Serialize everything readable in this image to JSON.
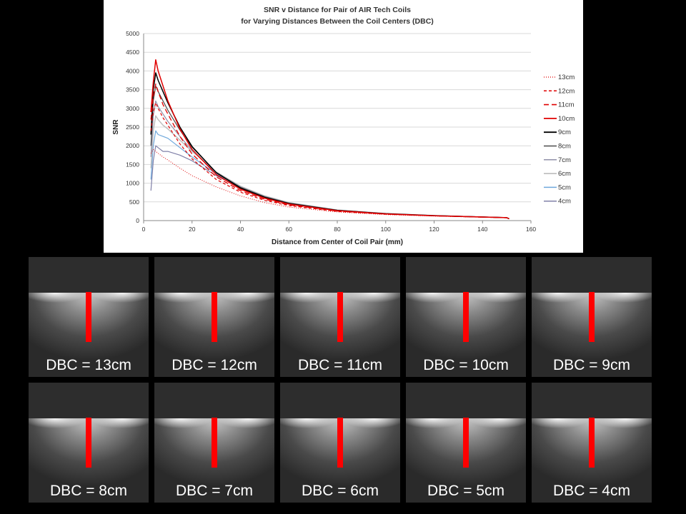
{
  "chart_data": {
    "type": "line",
    "title": "SNR v Distance for Pair of AIR Tech Coils",
    "subtitle": "for Varying Distances Between the Coil Centers (DBC)",
    "xlabel": "Distance from Center of Coil Pair (mm)",
    "ylabel": "SNR",
    "xlim": [
      0,
      160
    ],
    "ylim": [
      0,
      5000
    ],
    "xticks": [
      0,
      20,
      40,
      60,
      80,
      100,
      120,
      140,
      160
    ],
    "yticks": [
      0,
      500,
      1000,
      1500,
      2000,
      2500,
      3000,
      3500,
      4000,
      4500,
      5000
    ],
    "grid": "horizontal",
    "legend_position": "right",
    "x": [
      3,
      4,
      5,
      6,
      8,
      10,
      15,
      20,
      30,
      40,
      50,
      60,
      80,
      100,
      120,
      140,
      150,
      151
    ],
    "series": [
      {
        "name": "13cm",
        "color": "#e00000",
        "dash": "1,2",
        "width": 1,
        "values": [
          1800,
          1900,
          1850,
          1800,
          1700,
          1620,
          1400,
          1200,
          900,
          660,
          480,
          360,
          230,
          160,
          120,
          90,
          75,
          50
        ]
      },
      {
        "name": "12cm",
        "color": "#e00000",
        "dash": "4,3",
        "width": 1.2,
        "values": [
          2400,
          2900,
          3150,
          3000,
          2750,
          2550,
          2050,
          1650,
          1100,
          760,
          540,
          400,
          245,
          170,
          125,
          92,
          76,
          50
        ]
      },
      {
        "name": "11cm",
        "color": "#e00000",
        "dash": "7,4",
        "width": 1.3,
        "values": [
          2700,
          3300,
          3650,
          3450,
          3100,
          2850,
          2250,
          1780,
          1170,
          800,
          570,
          420,
          255,
          175,
          128,
          94,
          77,
          50
        ]
      },
      {
        "name": "10cm",
        "color": "#e00000",
        "dash": "",
        "width": 1.5,
        "values": [
          2900,
          3700,
          4300,
          4000,
          3600,
          3200,
          2450,
          1900,
          1230,
          840,
          600,
          440,
          265,
          180,
          130,
          95,
          78,
          50
        ]
      },
      {
        "name": "9cm",
        "color": "#000000",
        "dash": "",
        "width": 1.5,
        "values": [
          2300,
          3500,
          3950,
          3750,
          3450,
          3150,
          2500,
          1980,
          1280,
          870,
          620,
          455,
          272,
          183,
          132,
          96,
          78,
          50
        ]
      },
      {
        "name": "8cm",
        "color": "#4d4d4d",
        "dash": "",
        "width": 1.2,
        "values": [
          2000,
          3200,
          3600,
          3450,
          3200,
          2950,
          2420,
          1960,
          1290,
          890,
          635,
          465,
          277,
          186,
          133,
          96,
          78,
          50
        ]
      },
      {
        "name": "7cm",
        "color": "#9090a8",
        "dash": "",
        "width": 1.2,
        "values": [
          1700,
          2800,
          3200,
          3050,
          2850,
          2650,
          2250,
          1880,
          1280,
          900,
          645,
          472,
          280,
          188,
          134,
          97,
          79,
          50
        ]
      },
      {
        "name": "6cm",
        "color": "#c0c0c0",
        "dash": "",
        "width": 1.5,
        "values": [
          1400,
          2400,
          2800,
          2700,
          2550,
          2450,
          2150,
          1850,
          1300,
          920,
          660,
          480,
          284,
          190,
          135,
          97,
          79,
          50
        ]
      },
      {
        "name": "5cm",
        "color": "#6fa8dc",
        "dash": "",
        "width": 1.2,
        "values": [
          1100,
          2000,
          2400,
          2300,
          2250,
          2200,
          1950,
          1700,
          1250,
          900,
          650,
          475,
          282,
          189,
          135,
          97,
          79,
          50
        ]
      },
      {
        "name": "4cm",
        "color": "#8080a8",
        "dash": "",
        "width": 1.2,
        "values": [
          800,
          1600,
          2000,
          1950,
          1850,
          1850,
          1750,
          1600,
          1200,
          880,
          640,
          470,
          280,
          188,
          134,
          97,
          79,
          50
        ]
      }
    ]
  },
  "tiles": [
    {
      "caption": "DBC = 13cm"
    },
    {
      "caption": "DBC = 12cm"
    },
    {
      "caption": "DBC = 11cm"
    },
    {
      "caption": "DBC = 10cm"
    },
    {
      "caption": "DBC = 9cm"
    },
    {
      "caption": "DBC = 8cm"
    },
    {
      "caption": "DBC = 7cm"
    },
    {
      "caption": "DBC = 6cm"
    },
    {
      "caption": "DBC = 5cm"
    },
    {
      "caption": "DBC = 4cm"
    }
  ]
}
